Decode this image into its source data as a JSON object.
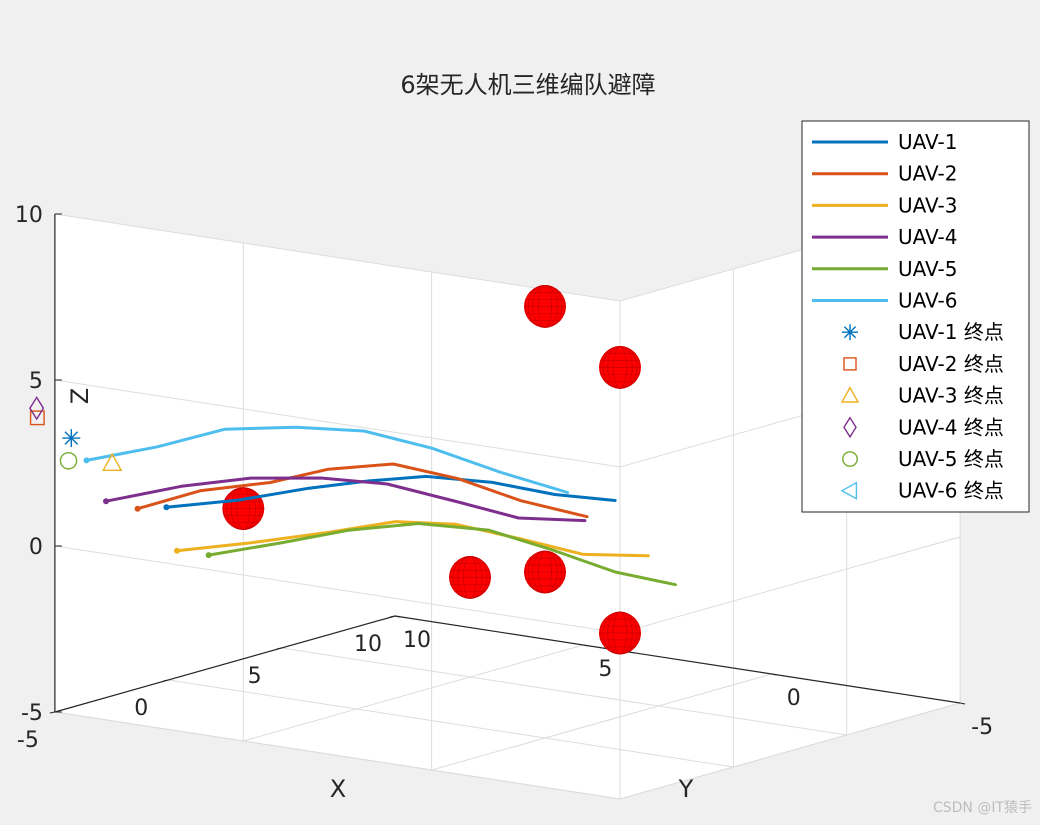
{
  "chart_data": {
    "type": "line",
    "title": "6架无人机三维编队避障",
    "xlabel": "X",
    "ylabel": "Y",
    "zlabel": "Z",
    "xlim": [
      -5,
      10
    ],
    "ylim": [
      -5,
      10
    ],
    "zlim": [
      -5,
      10
    ],
    "x_ticks": [
      "-5",
      "0",
      "5",
      "10"
    ],
    "y_ticks": [
      "10",
      "5",
      "0",
      "-5"
    ],
    "z_ticks": [
      "-5",
      "0",
      "5",
      "10"
    ],
    "grid": true,
    "legend_position": "top-right",
    "series": [
      {
        "name": "UAV-1",
        "color": "#0072BD",
        "points": [
          [
            6.2,
            -6.4,
            2.1
          ],
          [
            4.8,
            -5.6,
            2.4
          ],
          [
            3.5,
            -4.6,
            2.8
          ],
          [
            2.5,
            -3.6,
            3.0
          ],
          [
            1.6,
            -2.6,
            3.1
          ],
          [
            0.5,
            -1.5,
            2.9
          ],
          [
            -0.5,
            -0.4,
            2.5
          ],
          [
            -1.5,
            0.6,
            2.3
          ]
        ]
      },
      {
        "name": "UAV-2",
        "color": "#D95319",
        "points": [
          [
            6.0,
            -8.0,
            2.4
          ],
          [
            4.8,
            -7.2,
            3.0
          ],
          [
            3.5,
            -6.3,
            3.3
          ],
          [
            2.5,
            -5.4,
            3.7
          ],
          [
            1.5,
            -4.2,
            3.8
          ],
          [
            0.5,
            -3.0,
            3.3
          ],
          [
            -0.5,
            -1.9,
            2.6
          ],
          [
            -1.6,
            -0.8,
            2.1
          ]
        ]
      },
      {
        "name": "UAV-3",
        "color": "#EDB120",
        "points": [
          [
            6.4,
            -5.6,
            0.6
          ],
          [
            5.0,
            -4.6,
            0.9
          ],
          [
            3.5,
            -3.7,
            1.3
          ],
          [
            2.4,
            -2.6,
            1.6
          ],
          [
            1.4,
            -1.6,
            1.5
          ],
          [
            0.4,
            -0.4,
            1.0
          ],
          [
            -0.6,
            0.7,
            0.5
          ],
          [
            -1.6,
            1.9,
            0.4
          ]
        ]
      },
      {
        "name": "UAV-4",
        "color": "#7E2F8E",
        "points": [
          [
            6.6,
            -8.4,
            2.6
          ],
          [
            5.2,
            -7.4,
            3.1
          ],
          [
            3.9,
            -6.5,
            3.4
          ],
          [
            2.7,
            -5.4,
            3.4
          ],
          [
            1.6,
            -4.3,
            3.2
          ],
          [
            0.5,
            -3.0,
            2.6
          ],
          [
            -0.5,
            -2.0,
            2.1
          ],
          [
            -1.6,
            -0.9,
            2.0
          ]
        ]
      },
      {
        "name": "UAV-5",
        "color": "#77AC30",
        "points": [
          [
            6.4,
            -4.2,
            0.2
          ],
          [
            5.1,
            -3.2,
            0.6
          ],
          [
            3.9,
            -2.2,
            1.0
          ],
          [
            2.7,
            -1.1,
            1.2
          ],
          [
            1.5,
            0.0,
            1.0
          ],
          [
            0.4,
            1.0,
            0.4
          ],
          [
            -0.6,
            2.1,
            -0.3
          ],
          [
            -1.6,
            3.1,
            -0.7
          ]
        ]
      },
      {
        "name": "UAV-6",
        "color": "#4DBEEE",
        "points": [
          [
            8.2,
            -6.6,
            3.2
          ],
          [
            6.8,
            -5.8,
            3.7
          ],
          [
            5.5,
            -5.0,
            4.3
          ],
          [
            4.2,
            -4.0,
            4.4
          ],
          [
            3.0,
            -3.0,
            4.3
          ],
          [
            1.8,
            -2.0,
            3.8
          ],
          [
            0.6,
            -1.0,
            3.1
          ],
          [
            -0.6,
            0.0,
            2.5
          ]
        ]
      }
    ],
    "endpoint_markers": [
      {
        "name": "UAV-1 终点",
        "marker": "star",
        "color": "#0072BD",
        "pos": [
          8,
          -7.6,
          4.1
        ]
      },
      {
        "name": "UAV-2 终点",
        "marker": "square",
        "color": "#D95319",
        "pos": [
          8,
          -9.1,
          5.0
        ]
      },
      {
        "name": "UAV-3 终点",
        "marker": "triangle-up",
        "color": "#EDB120",
        "pos": [
          8,
          -5.8,
          3.0
        ]
      },
      {
        "name": "UAV-4 终点",
        "marker": "diamond",
        "color": "#7E2F8E",
        "pos": [
          8.8,
          -7.8,
          4.9
        ]
      },
      {
        "name": "UAV-5 终点",
        "marker": "circle",
        "color": "#77AC30",
        "pos": [
          9.7,
          -4.9,
          2.6
        ]
      },
      {
        "name": "UAV-6 终点",
        "marker": "triangle-left",
        "color": "#4DBEEE",
        "pos": [
          11.8,
          -7.7,
          4.8
        ]
      }
    ],
    "obstacles": {
      "color": "#FF0000",
      "radius": 0.6,
      "centers": [
        [
          0,
          0,
          8
        ],
        [
          0,
          0,
          0
        ],
        [
          5,
          5,
          -2
        ],
        [
          -5,
          -5,
          8
        ],
        [
          -5,
          -5,
          0
        ],
        [
          5,
          -5,
          2
        ]
      ]
    }
  },
  "watermark": "CSDN @IT猿手"
}
